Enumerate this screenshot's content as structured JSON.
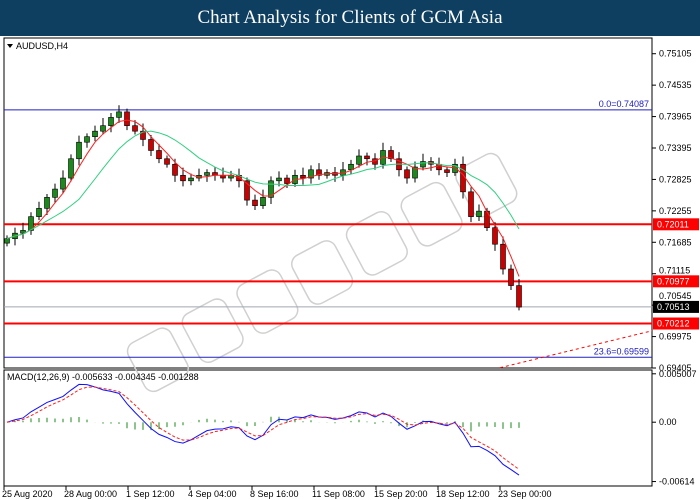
{
  "title": "Chart Analysis for Clients of GCM Asia",
  "chart_data": {
    "type": "candlestick",
    "symbol_label": "AUDUSD,H4",
    "ylim": [
      0.69405,
      0.7539
    ],
    "y_ticks": [
      "0.75105",
      "0.74535",
      "0.73965",
      "0.73395",
      "0.72825",
      "0.72255",
      "0.71685",
      "0.71115",
      "0.70545",
      "0.69975",
      "0.69405"
    ],
    "x_ticks": [
      "25 Aug 2020",
      "28 Aug 00:00",
      "1 Sep 12:00",
      "4 Sep 04:00",
      "8 Sep 16:00",
      "11 Sep 08:00",
      "15 Sep 20:00",
      "18 Sep 12:00",
      "23 Sep 00:00"
    ],
    "closes": [
      0.7175,
      0.7185,
      0.719,
      0.7215,
      0.723,
      0.725,
      0.7265,
      0.7285,
      0.732,
      0.735,
      0.736,
      0.737,
      0.738,
      0.7395,
      0.7405,
      0.738,
      0.737,
      0.7355,
      0.7335,
      0.732,
      0.731,
      0.729,
      0.728,
      0.7285,
      0.729,
      0.7295,
      0.729,
      0.7285,
      0.729,
      0.728,
      0.7245,
      0.7235,
      0.725,
      0.728,
      0.7285,
      0.7275,
      0.729,
      0.7285,
      0.73,
      0.729,
      0.7295,
      0.729,
      0.73,
      0.731,
      0.7325,
      0.732,
      0.731,
      0.7335,
      0.732,
      0.73,
      0.7285,
      0.7305,
      0.7315,
      0.731,
      0.73,
      0.7295,
      0.731,
      0.726,
      0.7215,
      0.7225,
      0.7195,
      0.7165,
      0.712,
      0.709,
      0.7051
    ],
    "levels": [
      {
        "value": 0.74087,
        "label": "0.0=0.74087",
        "color": "#2020c0",
        "type": "fib"
      },
      {
        "value": 0.72011,
        "label": "0.72011",
        "color": "#ff0000",
        "type": "support_resistance"
      },
      {
        "value": 0.70977,
        "label": "0.70977",
        "color": "#ff0000",
        "type": "support_resistance"
      },
      {
        "value": 0.70513,
        "label": "0.70513",
        "color": "#a0a8b0",
        "type": "current_price"
      },
      {
        "value": 0.70212,
        "label": "0.70212",
        "color": "#ff0000",
        "type": "support_resistance"
      },
      {
        "value": 0.69599,
        "label": "23.6=0.69599",
        "color": "#2020c0",
        "type": "fib"
      }
    ],
    "moving_averages": [
      {
        "color": "#ff2020"
      },
      {
        "color": "#30d080"
      }
    ],
    "macd": {
      "label": "MACD(12,26,9) -0.005633 -0.004345 -0.001288",
      "y_ticks": [
        "0.005007",
        "0.00",
        "-0.00614"
      ],
      "ylim": [
        -0.0066,
        0.0054
      ],
      "colors": {
        "macd": "#1010ff",
        "signal": "#ff2020",
        "histogram": "#1a8a1a"
      }
    },
    "colors": {
      "bull": "#1a8a1a",
      "bear": "#cc0000"
    },
    "watermark": "GCMASIA"
  }
}
